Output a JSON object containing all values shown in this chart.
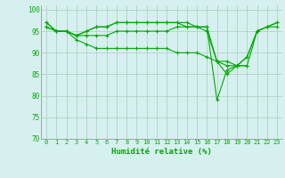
{
  "xlabel": "Humidité relative (%)",
  "background_color": "#d6f0f0",
  "line_color": "#00aa00",
  "grid_color": "#aaccbb",
  "xlim": [
    -0.5,
    23.5
  ],
  "ylim": [
    70,
    101
  ],
  "yticks": [
    70,
    75,
    80,
    85,
    90,
    95,
    100
  ],
  "xtick_labels": [
    "0",
    "1",
    "2",
    "3",
    "4",
    "5",
    "6",
    "7",
    "8",
    "9",
    "10",
    "11",
    "12",
    "13",
    "14",
    "15",
    "16",
    "17",
    "18",
    "19",
    "20",
    "21",
    "22",
    "23"
  ],
  "series": [
    [
      96,
      95,
      95,
      94,
      95,
      96,
      96,
      97,
      97,
      97,
      97,
      97,
      97,
      97,
      96,
      96,
      96,
      88,
      88,
      87,
      87,
      95,
      96,
      96
    ],
    [
      96,
      95,
      95,
      94,
      95,
      96,
      96,
      97,
      97,
      97,
      97,
      97,
      97,
      97,
      97,
      96,
      95,
      88,
      85,
      87,
      89,
      95,
      96,
      97
    ],
    [
      97,
      95,
      95,
      94,
      94,
      94,
      94,
      95,
      95,
      95,
      95,
      95,
      95,
      96,
      96,
      96,
      96,
      79,
      86,
      87,
      89,
      95,
      96,
      97
    ],
    [
      97,
      95,
      95,
      93,
      92,
      91,
      91,
      91,
      91,
      91,
      91,
      91,
      91,
      90,
      90,
      90,
      89,
      88,
      87,
      87,
      87,
      null,
      null,
      null
    ]
  ]
}
